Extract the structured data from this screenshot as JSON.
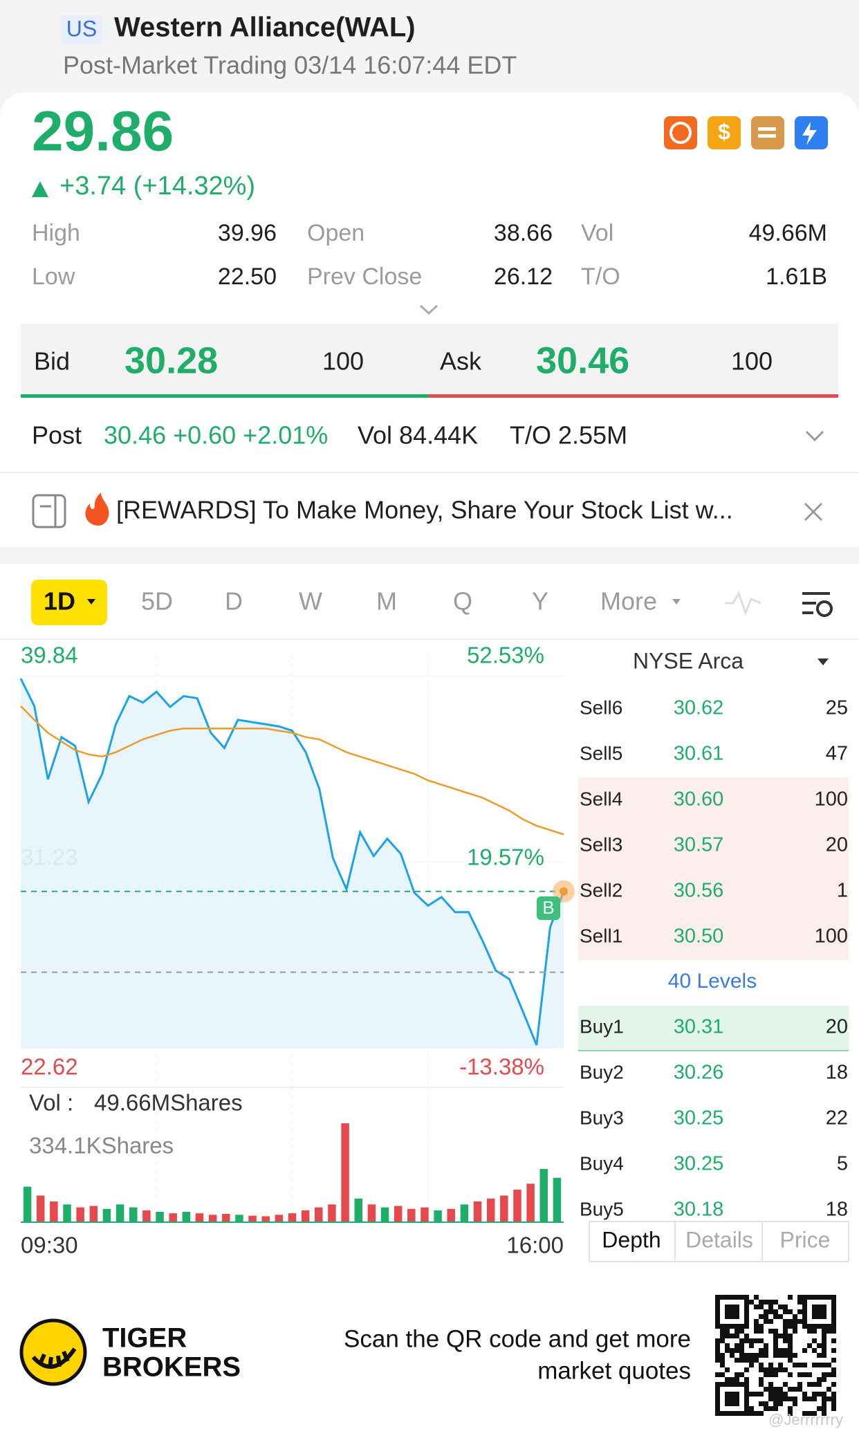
{
  "header": {
    "market": "US",
    "title": "Western Alliance(WAL)",
    "subtitle": "Post-Market Trading 03/14 16:07:44 EDT"
  },
  "quote": {
    "price": "29.86",
    "change": "+3.74 (+14.32%)"
  },
  "stats": [
    [
      {
        "label": "High",
        "value": "39.96"
      },
      {
        "label": "Open",
        "value": "38.66"
      },
      {
        "label": "Vol",
        "value": "49.66M"
      }
    ],
    [
      {
        "label": "Low",
        "value": "22.50"
      },
      {
        "label": "Prev Close",
        "value": "26.12"
      },
      {
        "label": "T/O",
        "value": "1.61B"
      }
    ]
  ],
  "bid_ask": {
    "bid_label": "Bid",
    "bid": "30.28",
    "bid_size": "100",
    "ask_label": "Ask",
    "ask": "30.46",
    "ask_size": "100"
  },
  "post": {
    "label": "Post",
    "quote": "30.46 +0.60 +2.01%",
    "volume": "Vol 84.44K",
    "turnover": "T/O 2.55M"
  },
  "banner": {
    "text": "[REWARDS] To Make Money, Share Your Stock List w..."
  },
  "tabs": [
    "1D",
    "5D",
    "D",
    "W",
    "M",
    "Q",
    "Y",
    "More"
  ],
  "chart_data": [
    {
      "type": "line",
      "categories": [
        "09:30",
        null,
        null,
        null,
        null,
        null,
        null,
        null,
        null,
        null,
        null,
        null,
        null,
        null,
        null,
        null,
        null,
        null,
        null,
        null,
        null,
        null,
        null,
        null,
        null,
        null,
        null,
        null,
        null,
        null,
        null,
        null,
        null,
        null,
        null,
        null,
        null,
        null,
        null,
        null,
        "16:00"
      ],
      "series": [
        {
          "color": "#1aa3e6",
          "values": [
            39.71,
            38.44,
            35.05,
            37.0,
            36.6,
            34.0,
            35.3,
            37.6,
            38.9,
            38.6,
            39.1,
            38.4,
            38.9,
            38.8,
            37.2,
            36.5,
            37.8,
            37.7,
            37.6,
            37.5,
            37.3,
            36.3,
            34.6,
            31.4,
            29.96,
            32.6,
            31.5,
            32.3,
            31.6,
            29.8,
            29.2,
            29.6,
            28.9,
            28.9,
            27.6,
            26.2,
            25.8,
            24.3,
            22.75,
            28.2,
            29.86
          ]
        },
        {
          "color": "#ee9a2a",
          "values": [
            38.44,
            37.8,
            37.2,
            36.8,
            36.4,
            36.2,
            36.1,
            36.3,
            36.6,
            36.9,
            37.1,
            37.3,
            37.4,
            37.4,
            37.4,
            37.4,
            37.4,
            37.4,
            37.4,
            37.3,
            37.2,
            37.0,
            36.9,
            36.6,
            36.3,
            36.1,
            35.9,
            35.7,
            35.5,
            35.3,
            35.0,
            34.8,
            34.6,
            34.4,
            34.2,
            33.9,
            33.6,
            33.2,
            32.9,
            32.7,
            32.5
          ]
        }
      ],
      "ylim": [
        22.62,
        39.84
      ],
      "yticks": [
        39.84,
        31.23,
        22.62
      ],
      "y2lim": [
        -13.38,
        52.53
      ],
      "y2ticks": [
        {
          "value": 52.53,
          "label": "52.53%"
        },
        {
          "value": 19.57,
          "label": "19.57%"
        },
        {
          "value": -13.38,
          "label": "-13.38%"
        }
      ],
      "current_price": 29.86,
      "prev_close": 26.12,
      "marker": "B"
    },
    {
      "type": "bar",
      "title": "Vol :",
      "subtitle": "49.66MShares",
      "values": [
        120000,
        90000,
        70000,
        60000,
        50000,
        55000,
        45000,
        60000,
        50000,
        40000,
        35000,
        30000,
        35000,
        30000,
        25000,
        28000,
        25000,
        22000,
        20000,
        25000,
        30000,
        40000,
        50000,
        60000,
        334100,
        80000,
        60000,
        50000,
        55000,
        45000,
        50000,
        40000,
        45000,
        60000,
        70000,
        80000,
        90000,
        110000,
        130000,
        180000,
        150000
      ],
      "ylim": [
        0,
        334100
      ],
      "yticks": [
        {
          "value": 334100,
          "label": "334.1KShares"
        }
      ],
      "up_color": "#1fae6a",
      "down_color": "#e5484d"
    }
  ],
  "order_book": {
    "exchange": "NYSE Arca",
    "sells": [
      {
        "name": "Sell6",
        "price": "30.62",
        "size": "25"
      },
      {
        "name": "Sell5",
        "price": "30.61",
        "size": "47"
      },
      {
        "name": "Sell4",
        "price": "30.60",
        "size": "100"
      },
      {
        "name": "Sell3",
        "price": "30.57",
        "size": "20"
      },
      {
        "name": "Sell2",
        "price": "30.56",
        "size": "1"
      },
      {
        "name": "Sell1",
        "price": "30.50",
        "size": "100"
      }
    ],
    "levels": "40 Levels",
    "buys": [
      {
        "name": "Buy1",
        "price": "30.31",
        "size": "20"
      },
      {
        "name": "Buy2",
        "price": "30.26",
        "size": "18"
      },
      {
        "name": "Buy3",
        "price": "30.25",
        "size": "22"
      },
      {
        "name": "Buy4",
        "price": "30.25",
        "size": "5"
      },
      {
        "name": "Buy5",
        "price": "30.18",
        "size": "18"
      }
    ],
    "tabs": [
      "Depth",
      "Details",
      "Price"
    ]
  },
  "footer": {
    "brand": [
      "TIGER",
      "BROKERS"
    ],
    "cta": [
      "Scan the QR code and get more",
      "market quotes"
    ],
    "watermark": "@Jerrrrrrry"
  }
}
